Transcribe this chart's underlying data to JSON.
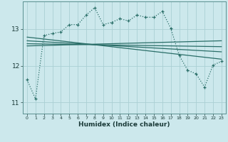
{
  "title": "",
  "xlabel": "Humidex (Indice chaleur)",
  "bg_color": "#cce8ec",
  "grid_color": "#aacfd4",
  "line_color": "#2a6e68",
  "xlim": [
    -0.5,
    23.5
  ],
  "ylim": [
    10.7,
    13.75
  ],
  "yticks": [
    11,
    12,
    13
  ],
  "xticks": [
    0,
    1,
    2,
    3,
    4,
    5,
    6,
    7,
    8,
    9,
    10,
    11,
    12,
    13,
    14,
    15,
    16,
    17,
    18,
    19,
    20,
    21,
    22,
    23
  ],
  "main_x": [
    0,
    1,
    2,
    3,
    4,
    5,
    6,
    7,
    8,
    9,
    10,
    11,
    12,
    13,
    14,
    15,
    16,
    17,
    18,
    19,
    20,
    21,
    22,
    23
  ],
  "main_y": [
    11.62,
    11.1,
    12.82,
    12.88,
    12.92,
    13.12,
    13.12,
    13.38,
    13.58,
    13.12,
    13.18,
    13.28,
    13.22,
    13.38,
    13.32,
    13.32,
    13.48,
    13.02,
    12.28,
    11.88,
    11.78,
    11.42,
    12.02,
    12.12
  ],
  "trend1_x": [
    0,
    23
  ],
  "trend1_y": [
    12.78,
    12.18
  ],
  "trend2_x": [
    0,
    23
  ],
  "trend2_y": [
    12.68,
    12.38
  ],
  "trend3_x": [
    0,
    23
  ],
  "trend3_y": [
    12.6,
    12.52
  ],
  "trend4_x": [
    0,
    23
  ],
  "trend4_y": [
    12.54,
    12.68
  ]
}
